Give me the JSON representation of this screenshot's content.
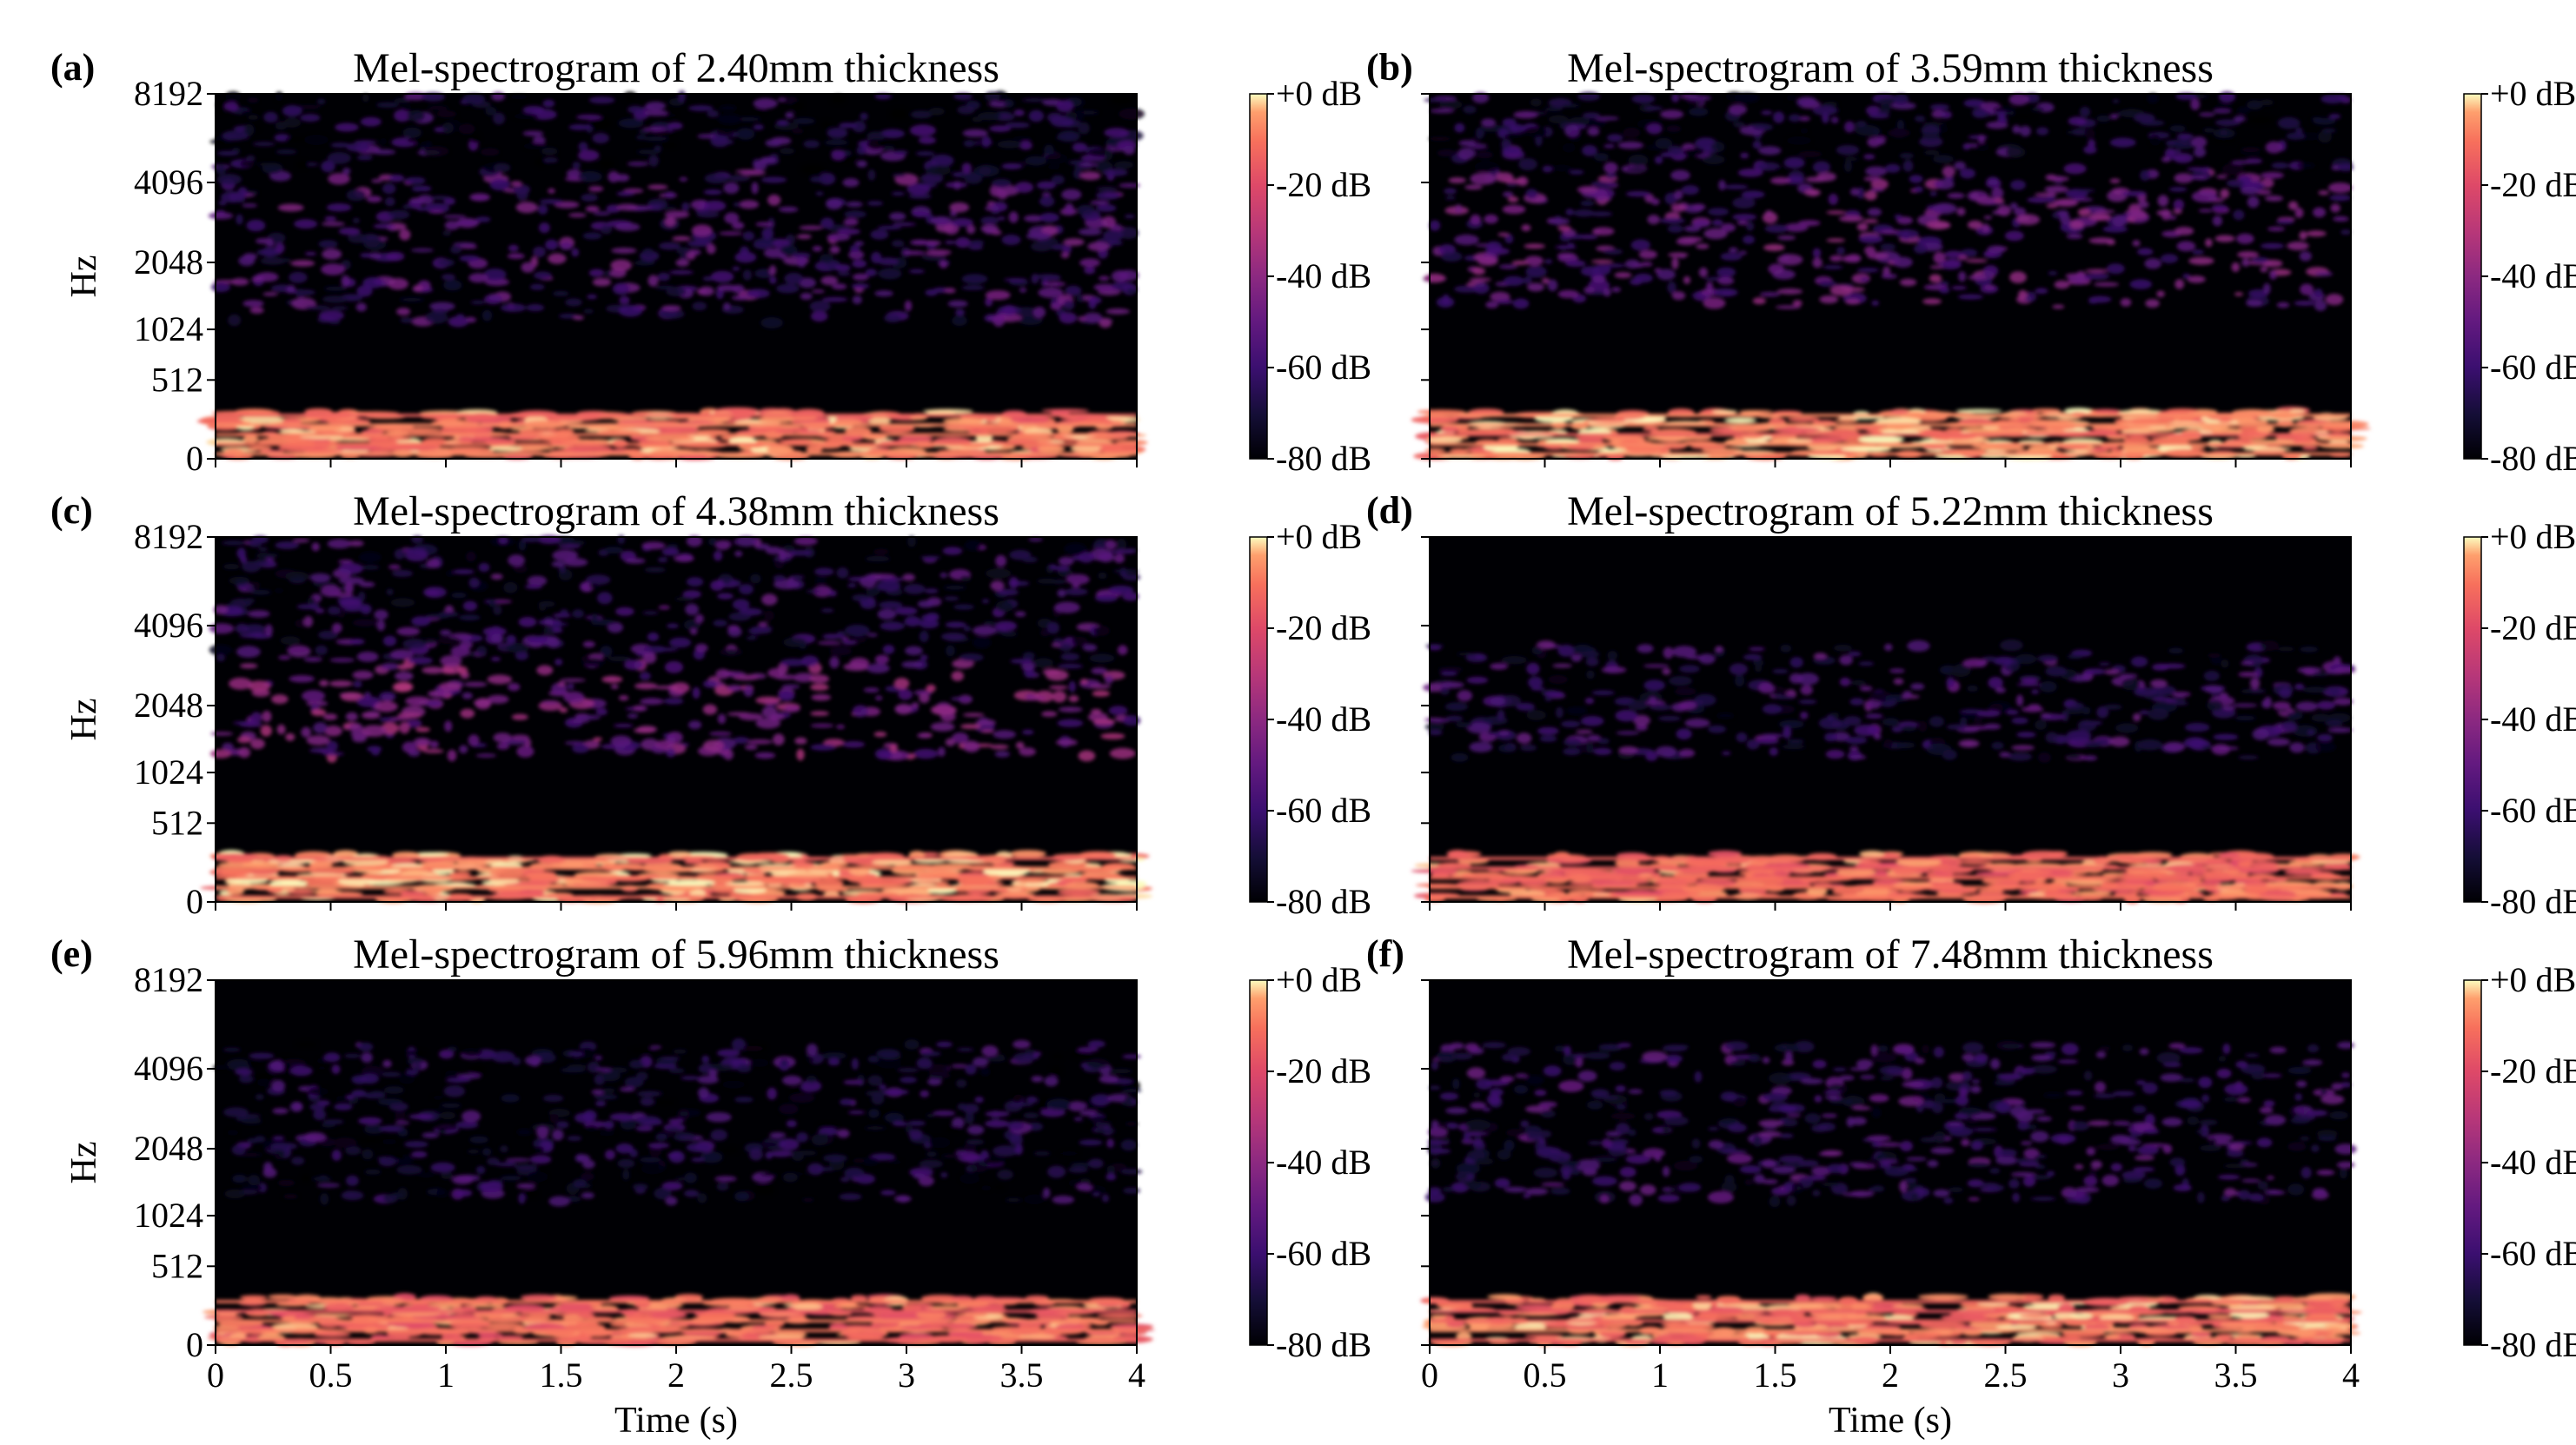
{
  "chart_data": {
    "type": "heatmap",
    "colormap": "magma",
    "x_unit": "Time (s)",
    "y_unit": "Hz",
    "xlim": [
      0,
      4
    ],
    "x_ticks": [
      0,
      0.5,
      1,
      1.5,
      2,
      2.5,
      3,
      3.5,
      4
    ],
    "x_tick_labels": [
      "0",
      "0.5",
      "1",
      "1.5",
      "2",
      "2.5",
      "3",
      "3.5",
      "4"
    ],
    "y_ticks": [
      0,
      512,
      1024,
      2048,
      4096,
      8192
    ],
    "y_tick_labels": [
      "0",
      "512",
      "1024",
      "2048",
      "4096",
      "8192"
    ],
    "y_scale": "mel",
    "ylim": [
      0,
      8192
    ],
    "colorbar": {
      "range": [
        -80,
        0
      ],
      "ticks": [
        0,
        -20,
        -40,
        -60,
        -80
      ],
      "tick_labels": [
        "+0 dB",
        "-20 dB",
        "-40 dB",
        "-60 dB",
        "-80 dB"
      ]
    },
    "panels": [
      {
        "label": "(a)",
        "title": "Mel-spectrogram of 2.40mm thickness",
        "thickness_mm": 2.4,
        "show_ylabel": true,
        "show_yticklabels": true,
        "show_xlabel": false,
        "show_xticklabels": false,
        "energy_bands": [
          {
            "freq_hz": [
              0,
              280
            ],
            "level_db": -10
          },
          {
            "freq_hz": [
              1100,
              4500
            ],
            "level_db": -50
          },
          {
            "freq_hz": [
              4500,
              8192
            ],
            "level_db": -60
          }
        ]
      },
      {
        "label": "(b)",
        "title": "Mel-spectrogram of 3.59mm thickness",
        "thickness_mm": 3.59,
        "show_ylabel": false,
        "show_yticklabels": false,
        "show_xlabel": false,
        "show_xticklabels": false,
        "energy_bands": [
          {
            "freq_hz": [
              0,
              280
            ],
            "level_db": -8
          },
          {
            "freq_hz": [
              1300,
              4500
            ],
            "level_db": -45
          },
          {
            "freq_hz": [
              4500,
              8192
            ],
            "level_db": -58
          }
        ]
      },
      {
        "label": "(c)",
        "title": "Mel-spectrogram of 4.38mm thickness",
        "thickness_mm": 4.38,
        "show_ylabel": true,
        "show_yticklabels": true,
        "show_xlabel": false,
        "show_xticklabels": false,
        "energy_bands": [
          {
            "freq_hz": [
              0,
              280
            ],
            "level_db": -8
          },
          {
            "freq_hz": [
              1200,
              3000
            ],
            "level_db": -40
          },
          {
            "freq_hz": [
              3000,
              8192
            ],
            "level_db": -55
          }
        ]
      },
      {
        "label": "(d)",
        "title": "Mel-spectrogram of 5.22mm thickness",
        "thickness_mm": 5.22,
        "show_ylabel": false,
        "show_yticklabels": false,
        "show_xlabel": false,
        "show_xticklabels": false,
        "energy_bands": [
          {
            "freq_hz": [
              0,
              280
            ],
            "level_db": -12
          },
          {
            "freq_hz": [
              1200,
              3500
            ],
            "level_db": -55
          }
        ]
      },
      {
        "label": "(e)",
        "title": "Mel-spectrogram of 5.96mm thickness",
        "thickness_mm": 5.96,
        "show_ylabel": true,
        "show_yticklabels": true,
        "show_xlabel": true,
        "show_xticklabels": true,
        "energy_bands": [
          {
            "freq_hz": [
              0,
              280
            ],
            "level_db": -12
          },
          {
            "freq_hz": [
              1200,
              5000
            ],
            "level_db": -60
          }
        ]
      },
      {
        "label": "(f)",
        "title": "Mel-spectrogram of 7.48mm thickness",
        "thickness_mm": 7.48,
        "show_ylabel": false,
        "show_yticklabels": false,
        "show_xlabel": true,
        "show_xticklabels": true,
        "energy_bands": [
          {
            "freq_hz": [
              0,
              280
            ],
            "level_db": -10
          },
          {
            "freq_hz": [
              1200,
              5000
            ],
            "level_db": -55
          }
        ]
      }
    ]
  }
}
